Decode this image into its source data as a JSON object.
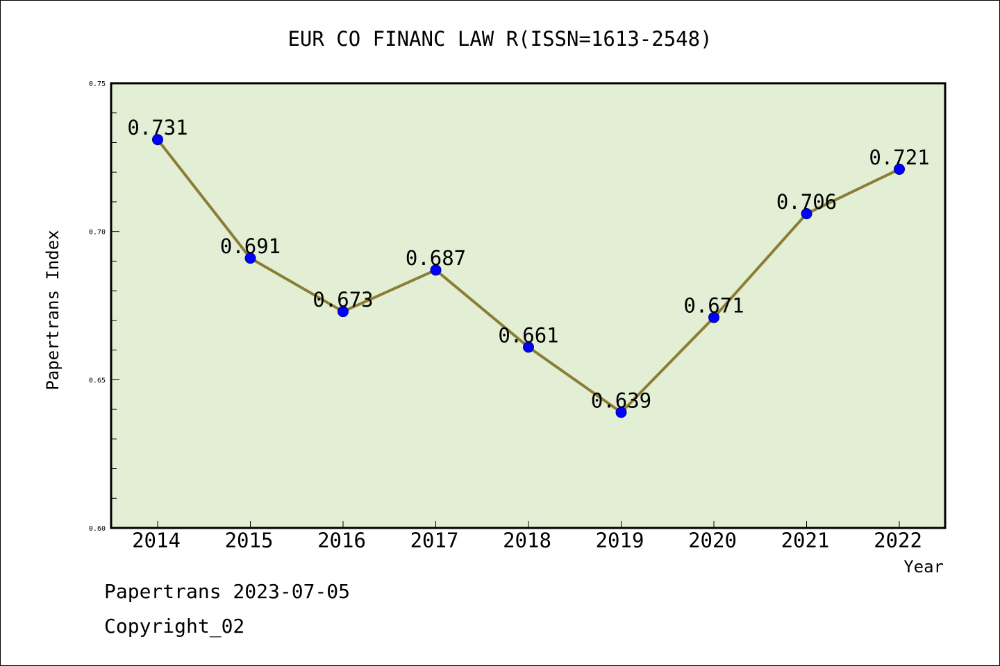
{
  "chart_data": {
    "type": "line",
    "title": "EUR CO FINANC LAW R(ISSN=1613-2548)",
    "xlabel": "Year",
    "ylabel": "Papertrans Index",
    "x": [
      "2014",
      "2015",
      "2016",
      "2017",
      "2018",
      "2019",
      "2020",
      "2021",
      "2022"
    ],
    "series": [
      {
        "values": [
          0.731,
          0.691,
          0.673,
          0.687,
          0.661,
          0.639,
          0.671,
          0.706,
          0.721
        ],
        "labels": [
          "0.731",
          "0.691",
          "0.673",
          "0.687",
          "0.661",
          "0.639",
          "0.671",
          "0.706",
          "0.721"
        ]
      }
    ],
    "ylim": [
      0.6,
      0.75
    ],
    "yticks": [
      "0.60",
      "0.65",
      "0.70",
      "0.75"
    ],
    "grid": false,
    "colors": {
      "plot_background": "#e2efd5",
      "line": "#8b7d35",
      "marker": "#0000ff"
    }
  },
  "footer": {
    "line1": "Papertrans 2023-07-05",
    "line2": "Copyright_02"
  }
}
